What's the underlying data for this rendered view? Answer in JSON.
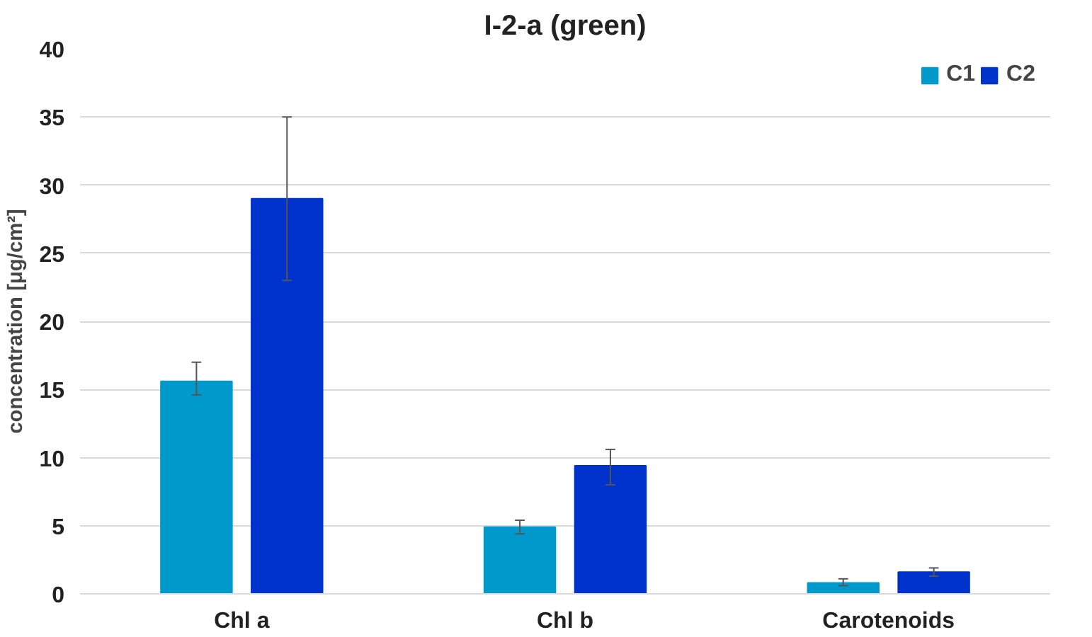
{
  "chart_data": {
    "type": "bar",
    "title": "I-2-a (green)",
    "ylabel": "concentration [μg/cm²]",
    "categories": [
      "Chl a",
      "Chl b",
      "Carotenoids"
    ],
    "series": [
      {
        "name": "C1",
        "color": "#0099cc",
        "values": [
          15.6,
          4.9,
          0.8
        ],
        "errors": [
          [
            14.6,
            17.0
          ],
          [
            4.4,
            5.4
          ],
          [
            0.6,
            1.1
          ]
        ]
      },
      {
        "name": "C2",
        "color": "#0033cc",
        "values": [
          29.0,
          9.4,
          1.6
        ],
        "errors": [
          [
            23.0,
            35.0
          ],
          [
            8.0,
            10.6
          ],
          [
            1.3,
            1.9
          ]
        ]
      }
    ],
    "ylim": [
      0,
      40
    ],
    "yticks": [
      0,
      5,
      10,
      15,
      20,
      25,
      30,
      35,
      40
    ],
    "grid": "y",
    "legend": "top right"
  }
}
